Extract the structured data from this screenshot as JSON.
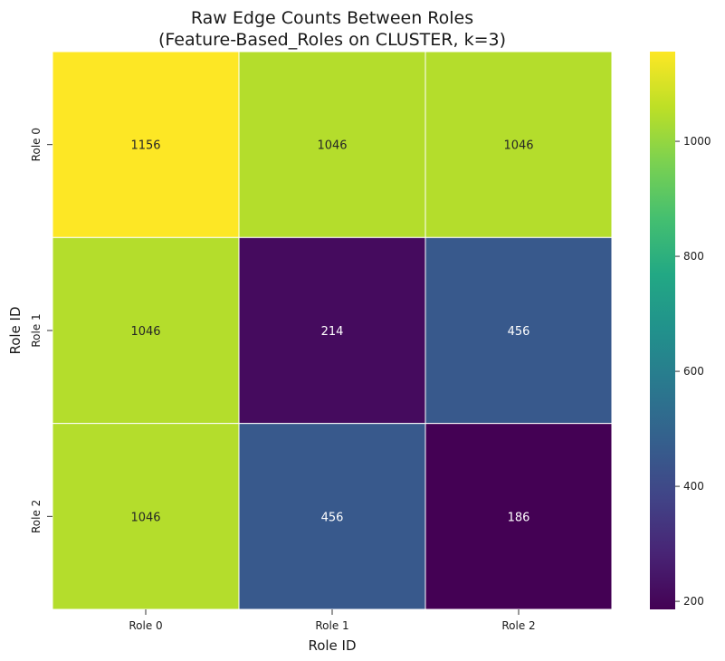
{
  "chart_data": {
    "type": "heatmap",
    "title_lines": [
      "Raw Edge Counts Between Roles",
      "(Feature-Based_Roles on CLUSTER, k=3)"
    ],
    "xlabel": "Role ID",
    "ylabel": "Role ID",
    "x_categories": [
      "Role 0",
      "Role 1",
      "Role 2"
    ],
    "y_categories": [
      "Role 0",
      "Role 1",
      "Role 2"
    ],
    "values": [
      [
        1156,
        1046,
        1046
      ],
      [
        1046,
        214,
        456
      ],
      [
        1046,
        456,
        186
      ]
    ],
    "colormap": "viridis",
    "value_range": [
      186,
      1156
    ],
    "colorbar_ticks": [
      200,
      400,
      600,
      800,
      1000
    ],
    "annotations": true
  }
}
